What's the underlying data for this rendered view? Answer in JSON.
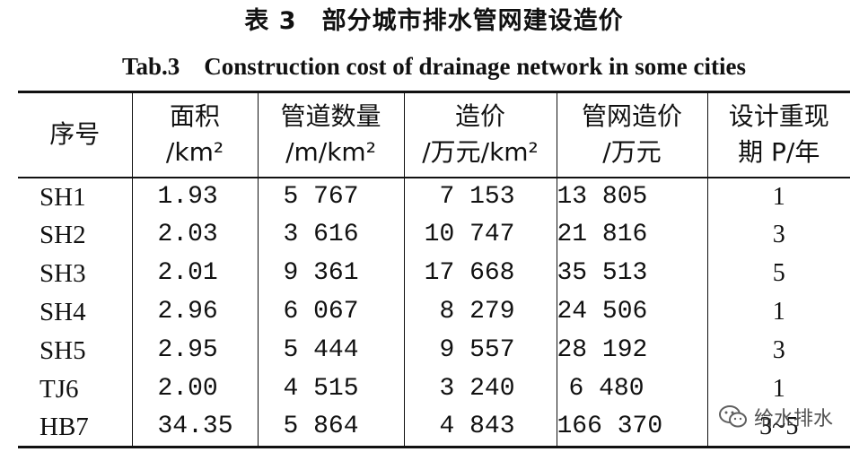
{
  "caption": {
    "cn": "表 3　部分城市排水管网建设造价",
    "en": "Tab.3　Construction cost of drainage network in some cities"
  },
  "table": {
    "headers": [
      {
        "l1": "序号",
        "l2": ""
      },
      {
        "l1": "面积",
        "l2": "/km²"
      },
      {
        "l1": "管道数量",
        "l2": "/m/km²"
      },
      {
        "l1": "造价",
        "l2": "/万元/km²"
      },
      {
        "l1": "管网造价",
        "l2": "/万元"
      },
      {
        "l1": "设计重现",
        "l2": "期 P/年"
      }
    ],
    "rows": [
      [
        "SH1",
        "1.93",
        "5 767",
        "7 153",
        "13 805",
        "1"
      ],
      [
        "SH2",
        "2.03",
        "3 616",
        "10 747",
        "21 816",
        "3"
      ],
      [
        "SH3",
        "2.01",
        "9 361",
        "17 668",
        "35 513",
        "5"
      ],
      [
        "SH4",
        "2.96",
        "6 067",
        "8 279",
        "24 506",
        "1"
      ],
      [
        "SH5",
        "2.95",
        "5 444",
        "9 557",
        "28 192",
        "3"
      ],
      [
        "TJ6",
        "2.00",
        "4 515",
        "3 240",
        "6 480",
        "1"
      ],
      [
        "HB7",
        "34.35",
        "5 864",
        "4 843",
        "166 370",
        "3~5"
      ]
    ]
  },
  "watermark": {
    "text": "给水排水",
    "icon": "wechat-icon"
  }
}
